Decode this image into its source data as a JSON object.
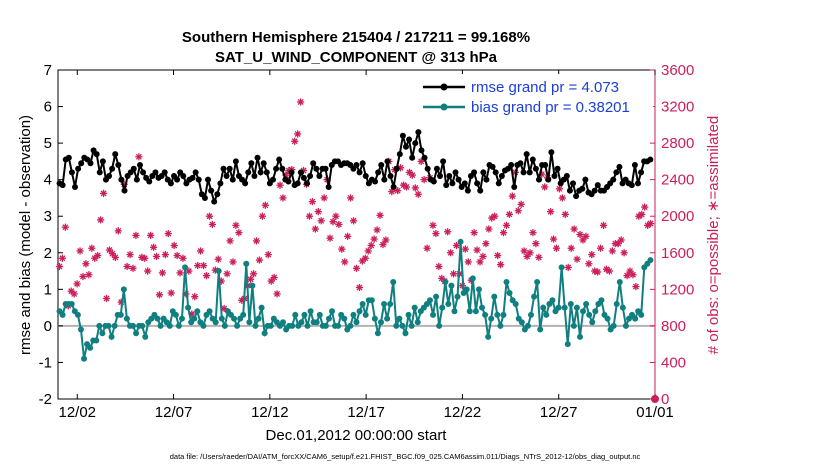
{
  "chart_data": {
    "type": "line",
    "title_line1": "Southern Hemisphere 215404 / 217211 = 99.168%",
    "title_line2": "SAT_U_WIND_COMPONENT @ 313 hPa",
    "xlabel": "Dec.01,2012 00:00:00 start",
    "ylabel_left": "rmse and bias (model - observation)",
    "ylabel_right": "# of obs: o=possible; ∗=assimilated",
    "footnote": "data file: /Users/raeder/DAI/ATM_forcXX/CAM6_setup/f.e21.FHIST_BGC.f09_025.CAM6assim.011/Diags_NTrS_2012-12/obs_diag_output.nc",
    "xlim": [
      0,
      31
    ],
    "ylim_left": [
      -2,
      7
    ],
    "ylim_right": [
      0,
      3600
    ],
    "x_ticks": [
      {
        "x": 1,
        "label": "12/02"
      },
      {
        "x": 6,
        "label": "12/07"
      },
      {
        "x": 11,
        "label": "12/12"
      },
      {
        "x": 16,
        "label": "12/17"
      },
      {
        "x": 21,
        "label": "12/22"
      },
      {
        "x": 26,
        "label": "12/27"
      },
      {
        "x": 31,
        "label": "01/01"
      }
    ],
    "y_ticks_left": [
      "-2",
      "-1",
      "0",
      "1",
      "2",
      "3",
      "4",
      "5",
      "6",
      "7"
    ],
    "y_ticks_right": [
      "0",
      "400",
      "800",
      "1200",
      "1600",
      "2000",
      "2400",
      "2800",
      "3200",
      "3600"
    ],
    "colors": {
      "rmse": "#000000",
      "bias": "#0f7f7f",
      "obs": "#cc1e5c",
      "zero_line": "#b3b3b3",
      "legend_text": "#1a3fd6"
    },
    "series": [
      {
        "name": "rmse",
        "legend": "rmse grand pr = 4.073",
        "axis": "left",
        "values": [
          3.9,
          3.85,
          4.55,
          4.6,
          4.2,
          3.8,
          4.3,
          4.45,
          4.6,
          4.55,
          4.45,
          4.8,
          4.7,
          4.2,
          4.5,
          4.0,
          4.1,
          4.3,
          4.7,
          4.4,
          4.0,
          3.7,
          4.1,
          4.2,
          4.3,
          4.0,
          4.4,
          4.2,
          4.05,
          3.95,
          4.1,
          4.2,
          4.05,
          4.1,
          4.2,
          4.0,
          3.9,
          4.1,
          4.0,
          4.2,
          4.1,
          3.9,
          4.0,
          4.05,
          4.2,
          4.0,
          3.6,
          3.5,
          4.0,
          3.7,
          3.4,
          3.6,
          3.9,
          4.3,
          4.1,
          4.3,
          4.0,
          4.5,
          4.1,
          4.0,
          3.9,
          4.2,
          4.45,
          4.1,
          4.6,
          4.2,
          4.45,
          4.2,
          3.9,
          4.0,
          4.3,
          4.55,
          4.3,
          4.0,
          3.95,
          4.2,
          3.85,
          3.9,
          4.2,
          4.05,
          3.9,
          4.1,
          4.45,
          4.3,
          4.1,
          4.3,
          4.3,
          3.8,
          4.4,
          4.5,
          4.5,
          4.4,
          4.45,
          4.45,
          4.4,
          4.3,
          4.4,
          4.2,
          4.45,
          4.1,
          3.9,
          4.0,
          3.95,
          4.2,
          4.4,
          4.0,
          4.5,
          4.1,
          3.8,
          4.3,
          4.7,
          5.2,
          4.9,
          5.1,
          4.6,
          5.0,
          5.3,
          4.8,
          4.6,
          4.3,
          4.0,
          3.95,
          4.3,
          4.1,
          4.5,
          3.85,
          4.1,
          3.9,
          4.2,
          4.0,
          3.8,
          3.9,
          3.7,
          4.1,
          4.2,
          3.9,
          3.7,
          4.2,
          4.0,
          4.4,
          4.35,
          4.2,
          3.9,
          4.1,
          4.25,
          4.3,
          4.4,
          3.8,
          4.4,
          4.45,
          4.2,
          4.7,
          4.2,
          4.55,
          4.3,
          4.0,
          4.4,
          4.4,
          4.0,
          4.75,
          4.1,
          4.3,
          3.9,
          4.0,
          4.1,
          3.7,
          3.9,
          3.55,
          3.7,
          3.75,
          4.0,
          3.65,
          3.6,
          3.7,
          3.85,
          3.7,
          3.7,
          3.8,
          3.9,
          4.0,
          4.2,
          4.35,
          3.9,
          4.0,
          3.9,
          3.85,
          4.4,
          3.9,
          4.2,
          4.5,
          4.5,
          4.55
        ]
      },
      {
        "name": "bias",
        "legend": "bias grand pr = 0.38201",
        "axis": "left",
        "values": [
          0.4,
          0.3,
          0.6,
          0.6,
          0.6,
          0.4,
          0.3,
          -0.1,
          -0.9,
          -0.5,
          -0.6,
          -0.4,
          -0.4,
          0.0,
          -0.2,
          0.0,
          0.0,
          -0.3,
          0.0,
          0.3,
          0.3,
          1.0,
          0.2,
          0.0,
          0.0,
          -0.2,
          0.0,
          0.0,
          -0.3,
          0.1,
          0.2,
          0.3,
          0.2,
          0.0,
          0.2,
          0.1,
          0.0,
          0.4,
          0.3,
          0.0,
          0.2,
          1.6,
          0.5,
          0.1,
          0.2,
          0.4,
          0.1,
          0.0,
          0.3,
          0.4,
          0.2,
          0.1,
          1.5,
          0.2,
          0.0,
          0.4,
          0.3,
          0.2,
          0.0,
          0.2,
          0.3,
          1.7,
          0.1,
          1.1,
          0.0,
          0.2,
          0.5,
          -0.2,
          0.0,
          0.0,
          0.2,
          0.1,
          0.0,
          0.1,
          -0.1,
          0.0,
          0.0,
          0.3,
          0.0,
          0.1,
          0.3,
          0.0,
          0.4,
          0.1,
          0.1,
          0.3,
          0.0,
          0.0,
          0.2,
          0.4,
          0.0,
          0.0,
          0.3,
          0.2,
          -0.1,
          0.0,
          0.3,
          0.1,
          0.4,
          0.6,
          0.3,
          0.7,
          0.7,
          0.2,
          -0.2,
          0.1,
          0.6,
          0.2,
          0.6,
          1.2,
          0.0,
          0.2,
          0.0,
          -0.2,
          0.3,
          0.0,
          0.5,
          0.1,
          0.4,
          0.5,
          0.6,
          0.7,
          0.3,
          0.8,
          0.0,
          0.5,
          1.2,
          0.6,
          1.1,
          0.4,
          0.8,
          2.3,
          0.9,
          1.0,
          0.4,
          1.3,
          0.4,
          1.0,
          0.5,
          0.3,
          -0.3,
          0.2,
          0.8,
          0.3,
          0.0,
          0.3,
          1.2,
          0.9,
          0.7,
          0.6,
          0.2,
          0.1,
          -0.1,
          0.0,
          0.3,
          0.8,
          1.2,
          -0.1,
          0.5,
          0.3,
          0.6,
          0.7,
          0.4,
          0.5,
          1.6,
          0.5,
          -0.5,
          0.6,
          0.0,
          0.5,
          -0.3,
          0.4,
          0.6,
          0.3,
          0.1,
          0.4,
          0.6,
          0.7,
          0.3,
          0.2,
          -0.1,
          0.0,
          0.6,
          1.2,
          0.5,
          0.0,
          0.2,
          0.3,
          0.2,
          0.4,
          0.3,
          1.6,
          1.7,
          1.8
        ]
      },
      {
        "name": "obs_assimilated",
        "axis": "right",
        "values": [
          1450,
          1540,
          1880,
          1020,
          1180,
          1150,
          1260,
          1620,
          1340,
          1480,
          1360,
          1650,
          1540,
          1570,
          1960,
          2250,
          1100,
          1630,
          1590,
          1550,
          1840,
          1060,
          2350,
          1450,
          1580,
          1430,
          1790,
          2650,
          1550,
          1540,
          1400,
          1790,
          1660,
          1560,
          1140,
          1380,
          1580,
          1810,
          1160,
          1680,
          1570,
          1380,
          1540,
          1150,
          1400,
          930,
          1120,
          1460,
          1620,
          1460,
          1350,
          2000,
          1910,
          1410,
          1530,
          1290,
          990,
          1370,
          1730,
          1500,
          1900,
          1820,
          1080,
          1100,
          1240,
          1310,
          1370,
          1730,
          1520,
          2000,
          2120,
          1580,
          1290,
          1330,
          1150,
          2340,
          2200,
          2450,
          2500,
          2510,
          2820,
          2900,
          3250,
          2500,
          2350,
          2000,
          2160,
          1860,
          2050,
          1950,
          2200,
          2400,
          1760,
          1940,
          2000,
          1910,
          1640,
          1500,
          1780,
          2200,
          1950,
          1430,
          1220,
          1510,
          1540,
          1620,
          1680,
          1750,
          1850,
          2010,
          1690,
          1740,
          2600,
          2270,
          2510,
          2280,
          2530,
          2340,
          2320,
          2480,
          2450,
          2310,
          2240,
          2600,
          2400,
          1650,
          2420,
          1900,
          1810,
          1450,
          1320,
          1290,
          1830,
          1600,
          1370,
          1680,
          1370,
          1240,
          1640,
          1500,
          1300,
          1820,
          1630,
          1500,
          1560,
          1700,
          1860,
          1980,
          2000,
          1570,
          1470,
          1820,
          1900,
          2020,
          2220,
          2480,
          2060,
          2130,
          1620,
          1560,
          1600,
          1820,
          1700,
          1550,
          2460,
          2320,
          2420,
          2050,
          1750,
          1650,
          2300,
          2200,
          2020,
          1440,
          1650,
          1860,
          1530,
          1800,
          1740,
          1780,
          1480,
          1580,
          1400,
          1390,
          1650,
          1900,
          1420,
          1400,
          1620,
          1700,
          1700,
          1740,
          1600,
          1350,
          1400,
          1360,
          1230,
          2000,
          2020,
          2100,
          1900,
          1920
        ]
      }
    ],
    "obs_possible_max": 3600
  }
}
